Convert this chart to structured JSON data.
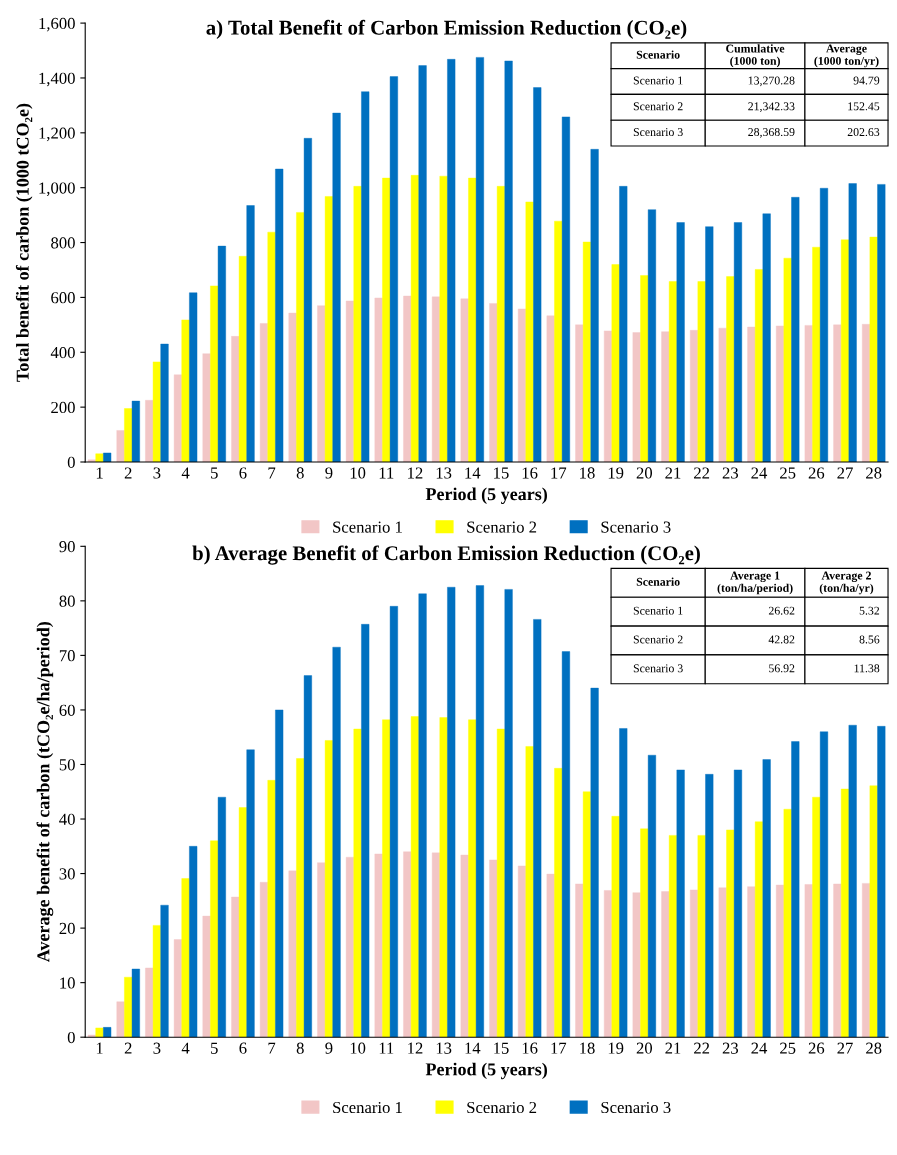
{
  "chart_data": [
    {
      "type": "bar",
      "title": "a) Total Benefit of Carbon Emission Reduction (CO₂e)",
      "xlabel": "Period (5 years)",
      "ylabel": "Total benefit of carbon (1000 tCO₂e)",
      "categories": [
        "1",
        "2",
        "3",
        "4",
        "5",
        "6",
        "7",
        "8",
        "9",
        "10",
        "11",
        "12",
        "13",
        "14",
        "15",
        "16",
        "17",
        "18",
        "19",
        "20",
        "21",
        "22",
        "23",
        "24",
        "25",
        "26",
        "27",
        "28"
      ],
      "series": [
        {
          "name": "Scenario 1",
          "color": "#f2c6c6",
          "values": [
            8,
            115,
            225,
            318,
            395,
            458,
            505,
            543,
            570,
            587,
            598,
            605,
            602,
            595,
            578,
            558,
            533,
            500,
            478,
            472,
            475,
            480,
            488,
            492,
            496,
            498,
            500,
            502
          ]
        },
        {
          "name": "Scenario 2",
          "color": "#ffff00",
          "values": [
            30,
            195,
            365,
            518,
            642,
            750,
            838,
            910,
            968,
            1005,
            1035,
            1045,
            1042,
            1035,
            1005,
            948,
            878,
            802,
            720,
            680,
            658,
            658,
            676,
            702,
            743,
            783,
            810,
            820
          ]
        },
        {
          "name": "Scenario 3",
          "color": "#0070c0",
          "values": [
            33,
            222,
            430,
            617,
            787,
            935,
            1068,
            1180,
            1272,
            1350,
            1405,
            1445,
            1468,
            1475,
            1462,
            1365,
            1258,
            1140,
            1005,
            920,
            873,
            858,
            873,
            905,
            965,
            998,
            1015,
            1012
          ]
        }
      ],
      "ylim": [
        0,
        1600
      ],
      "yticks": [
        0,
        200,
        400,
        600,
        800,
        {
          "value": 1000,
          "label": "1,000"
        },
        {
          "value": 1200,
          "label": "1,200"
        },
        {
          "value": 1400,
          "label": "1,400"
        },
        {
          "value": 1600,
          "label": "1,600"
        }
      ],
      "grid": false,
      "legend": "bottom",
      "annotations": [
        "Scenario",
        "Cumulative\n(1000 ton)",
        "Average\n(1000 ton/yr)",
        "Scenario 1",
        "13,270.28",
        "94.79",
        "Scenario 2",
        "21,342.33",
        "152.45",
        "Scenario 3",
        "28,368.59",
        "202.63"
      ]
    },
    {
      "type": "bar",
      "title": "b) Average Benefit of Carbon Emission Reduction (CO₂e)",
      "xlabel": "Period (5 years)",
      "ylabel": "Average benefit of carbon (tCO₂e/ha/period)",
      "categories": [
        "1",
        "2",
        "3",
        "4",
        "5",
        "6",
        "7",
        "8",
        "9",
        "10",
        "11",
        "12",
        "13",
        "14",
        "15",
        "16",
        "17",
        "18",
        "19",
        "20",
        "21",
        "22",
        "23",
        "24",
        "25",
        "26",
        "27",
        "28"
      ],
      "series": [
        {
          "name": "Scenario 1",
          "color": "#f2c6c6",
          "values": [
            0.4,
            6.5,
            12.7,
            17.9,
            22.2,
            25.7,
            28.4,
            30.5,
            32,
            33,
            33.6,
            34,
            33.8,
            33.4,
            32.5,
            31.4,
            29.9,
            28.1,
            26.9,
            26.5,
            26.7,
            27,
            27.4,
            27.6,
            27.9,
            28,
            28.1,
            28.2
          ]
        },
        {
          "name": "Scenario 2",
          "color": "#ffff00",
          "values": [
            1.7,
            11,
            20.5,
            29.1,
            36,
            42.1,
            47.1,
            51.1,
            54.4,
            56.5,
            58.2,
            58.8,
            58.6,
            58.2,
            56.5,
            53.3,
            49.3,
            45,
            40.5,
            38.2,
            37,
            37,
            38,
            39.5,
            41.8,
            44,
            45.5,
            46.1
          ]
        },
        {
          "name": "Scenario 3",
          "color": "#0070c0",
          "values": [
            1.8,
            12.5,
            24.2,
            35,
            44,
            52.7,
            60,
            66.3,
            71.5,
            75.7,
            79,
            81.3,
            82.5,
            82.8,
            82.1,
            76.6,
            70.7,
            64,
            56.6,
            51.7,
            49,
            48.2,
            49,
            50.9,
            54.2,
            56,
            57.2,
            57
          ]
        }
      ],
      "ylim": [
        0,
        90
      ],
      "yticks": [
        0,
        10,
        20,
        30,
        40,
        50,
        60,
        70,
        80,
        90
      ],
      "grid": false,
      "legend": "bottom",
      "annotations": [
        "Scenario",
        "Average 1\n(ton/ha/period)",
        "Average 2\n(ton/ha/yr)",
        "Scenario 1",
        "26.62",
        "5.32",
        "Scenario 2",
        "42.82",
        "8.56",
        "Scenario 3",
        "56.92",
        "11.38"
      ]
    }
  ]
}
